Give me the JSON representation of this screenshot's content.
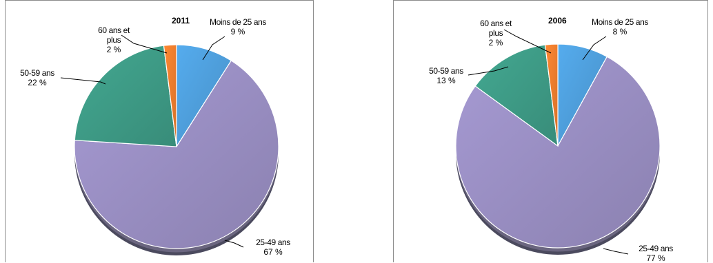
{
  "colors": {
    "moins_de_25": "#4f9fdc",
    "ans_25_49": "#9a8fc3",
    "ans_50_59": "#3e9c86",
    "ans_60_plus": "#ef7e2e"
  },
  "chart_data": [
    {
      "type": "pie",
      "title": "2011",
      "slices": [
        {
          "label": "Moins de 25 ans",
          "value": 9,
          "value_label": "9 %",
          "color": "#4f9fdc"
        },
        {
          "label": "25-49 ans",
          "value": 67,
          "value_label": "67 %",
          "color": "#9a8fc3"
        },
        {
          "label": "50-59 ans",
          "value": 22,
          "value_label": "22 %",
          "color": "#3e9c86"
        },
        {
          "label": "60 ans et plus",
          "value": 2,
          "value_label": "2 %",
          "color": "#ef7e2e"
        }
      ]
    },
    {
      "type": "pie",
      "title": "2006",
      "slices": [
        {
          "label": "Moins de 25 ans",
          "value": 8,
          "value_label": "8 %",
          "color": "#4f9fdc"
        },
        {
          "label": "25-49 ans",
          "value": 77,
          "value_label": "77 %",
          "color": "#9a8fc3"
        },
        {
          "label": "50-59 ans",
          "value": 13,
          "value_label": "13 %",
          "color": "#3e9c86"
        },
        {
          "label": "60 ans et plus",
          "value": 2,
          "value_label": "2 %",
          "color": "#ef7e2e"
        }
      ]
    }
  ]
}
